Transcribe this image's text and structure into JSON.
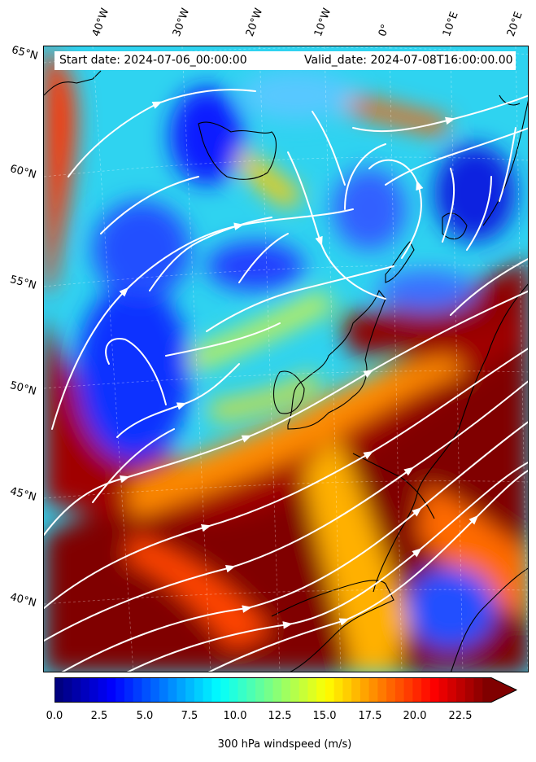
{
  "header": {
    "start_date": "Start date: 2024-07-06_00:00:00",
    "valid_date": "Valid_date: 2024-07-08T16:00:00.00"
  },
  "longitude_labels": [
    "40°W",
    "30°W",
    "20°W",
    "10°W",
    "0°",
    "10°E",
    "20°E"
  ],
  "latitude_labels": [
    "65°N",
    "60°N",
    "55°N",
    "50°N",
    "45°N",
    "40°N"
  ],
  "colorbar": {
    "ticks": [
      "0.0",
      "2.5",
      "5.0",
      "7.5",
      "10.0",
      "12.5",
      "15.0",
      "17.5",
      "20.0",
      "22.5"
    ],
    "label": "300 hPa windspeed (m/s)",
    "min": 0,
    "max": 25,
    "extend": "max",
    "colormap": "jet"
  },
  "map": {
    "variable": "300 hPa windspeed",
    "units": "m/s",
    "overlay": "white streamlines",
    "coastlines": "black"
  }
}
